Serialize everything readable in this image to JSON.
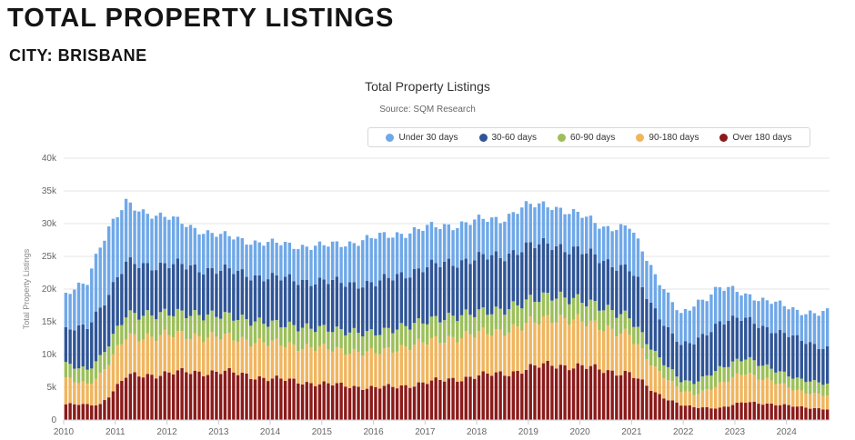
{
  "header": {
    "title": "TOTAL PROPERTY LISTINGS",
    "subtitle": "CITY: BRISBANE"
  },
  "chart_data": {
    "type": "bar",
    "stacked": true,
    "title": "Total Property Listings",
    "subtitle": "Source: SQM Research",
    "xlabel": "",
    "ylabel": "Total Property Listings",
    "ylim": [
      0,
      40000
    ],
    "yticks": [
      0,
      5000,
      10000,
      15000,
      20000,
      25000,
      30000,
      35000,
      40000
    ],
    "ytick_labels": [
      "0",
      "5k",
      "10k",
      "15k",
      "20k",
      "25k",
      "30k",
      "35k",
      "40k"
    ],
    "xticks": [
      "2010",
      "2011",
      "2012",
      "2013",
      "2014",
      "2015",
      "2016",
      "2017",
      "2018",
      "2019",
      "2020",
      "2021",
      "2022",
      "2023",
      "2024"
    ],
    "grid": true,
    "legend_position": "top-right",
    "frequency": "monthly",
    "start": "2010-01",
    "end": "2024-10",
    "keyframes": {
      "description": "Values at selected months; intermediate months follow the same trend",
      "dates": [
        "2010-01",
        "2010-06",
        "2010-09",
        "2011-03",
        "2012-01",
        "2013-01",
        "2014-01",
        "2015-01",
        "2016-01",
        "2016-06",
        "2017-06",
        "2018-06",
        "2018-11",
        "2019-06",
        "2019-11",
        "2020-06",
        "2020-12",
        "2021-06",
        "2021-12",
        "2022-03",
        "2022-09",
        "2023-03",
        "2023-09",
        "2024-03",
        "2024-10"
      ],
      "series": [
        {
          "name": "Over 180 days",
          "color": "#8b1a1a",
          "values": [
            2400,
            2300,
            2400,
            6600,
            7200,
            7400,
            6300,
            5500,
            4900,
            5100,
            6200,
            7100,
            7600,
            8600,
            8200,
            7700,
            7100,
            4200,
            2300,
            1900,
            1900,
            2700,
            2500,
            2000,
            1700
          ]
        },
        {
          "name": "90-180 days",
          "color": "#f0b55e",
          "values": [
            3800,
            3200,
            4500,
            6000,
            5800,
            5300,
            5400,
            5400,
            5300,
            5900,
            6300,
            6500,
            6700,
            7200,
            7000,
            6600,
            5700,
            3800,
            2100,
            2000,
            3500,
            4600,
            3400,
            2500,
            2000
          ]
        },
        {
          "name": "60-90 days",
          "color": "#9cbf5a",
          "values": [
            2300,
            2200,
            2600,
            3400,
            3300,
            3300,
            3000,
            3000,
            3000,
            3100,
            3300,
            3200,
            3500,
            3400,
            3200,
            3000,
            2800,
            2200,
            1600,
            1800,
            2400,
            2300,
            1900,
            1800,
            1800
          ]
        },
        {
          "name": "30-60 days",
          "color": "#2f5597",
          "values": [
            5200,
            6500,
            7800,
            7800,
            7400,
            6900,
            7000,
            7200,
            7600,
            8000,
            8300,
            8300,
            8400,
            7800,
            7600,
            7200,
            7400,
            6600,
            5400,
            6000,
            7300,
            5900,
            6000,
            6100,
            5500
          ]
        },
        {
          "name": "Under 30 days",
          "color": "#6fa8e8",
          "values": [
            5200,
            7200,
            9700,
            9200,
            7000,
            5200,
            5200,
            5400,
            7000,
            6400,
            5700,
            5700,
            6200,
            6000,
            5500,
            5200,
            6300,
            5600,
            4500,
            5800,
            5300,
            3600,
            4400,
            4100,
            5500
          ]
        }
      ]
    }
  }
}
